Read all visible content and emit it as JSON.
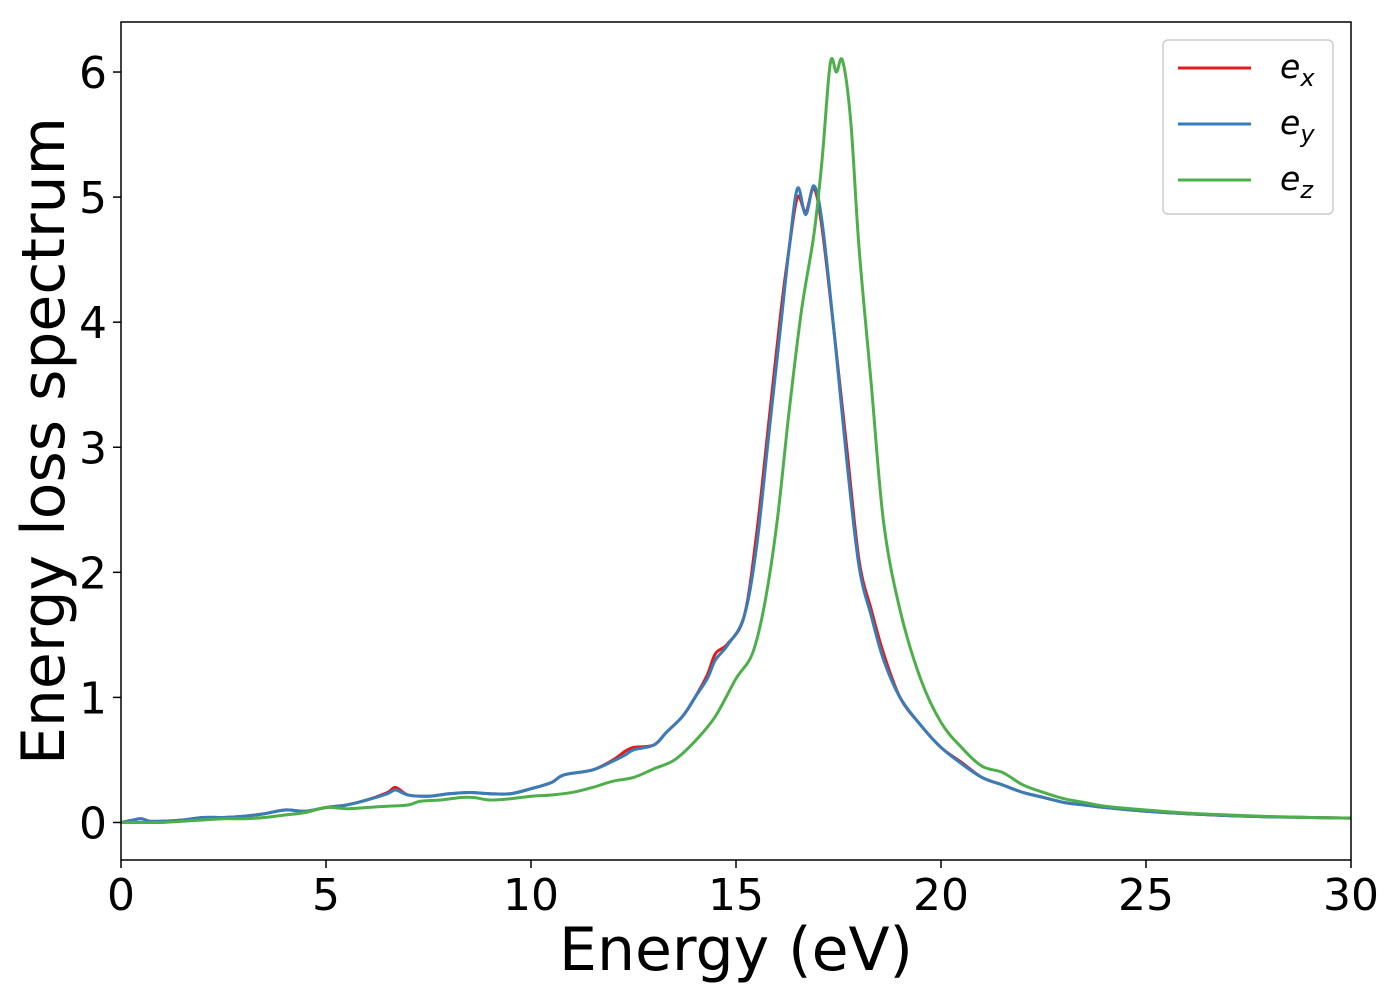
{
  "chart_data": {
    "type": "line",
    "xlabel": "Energy (eV)",
    "ylabel": "Energy loss spectrum",
    "xlim": [
      0,
      30
    ],
    "ylim": [
      -0.3,
      6.4
    ],
    "xticks": [
      0,
      5,
      10,
      15,
      20,
      25,
      30
    ],
    "yticks": [
      0,
      1,
      2,
      3,
      4,
      5,
      6
    ],
    "grid": false,
    "legend_position": "top-right",
    "series": [
      {
        "name": "e_x",
        "label_base": "e",
        "label_sub": "x",
        "color": "#e41a1c",
        "points": [
          [
            0,
            0
          ],
          [
            0.3,
            0.02
          ],
          [
            0.5,
            0.03
          ],
          [
            0.7,
            0.01
          ],
          [
            1,
            0.01
          ],
          [
            1.5,
            0.02
          ],
          [
            2,
            0.04
          ],
          [
            2.5,
            0.04
          ],
          [
            3,
            0.05
          ],
          [
            3.5,
            0.07
          ],
          [
            4,
            0.1
          ],
          [
            4.5,
            0.09
          ],
          [
            5,
            0.12
          ],
          [
            5.5,
            0.14
          ],
          [
            6,
            0.18
          ],
          [
            6.5,
            0.24
          ],
          [
            6.7,
            0.28
          ],
          [
            7,
            0.22
          ],
          [
            7.5,
            0.21
          ],
          [
            8,
            0.23
          ],
          [
            8.5,
            0.24
          ],
          [
            9,
            0.23
          ],
          [
            9.5,
            0.23
          ],
          [
            10,
            0.27
          ],
          [
            10.5,
            0.32
          ],
          [
            10.8,
            0.38
          ],
          [
            11.5,
            0.42
          ],
          [
            12,
            0.5
          ],
          [
            12.3,
            0.57
          ],
          [
            12.5,
            0.6
          ],
          [
            13,
            0.62
          ],
          [
            13.3,
            0.72
          ],
          [
            13.7,
            0.85
          ],
          [
            14,
            1.0
          ],
          [
            14.3,
            1.18
          ],
          [
            14.5,
            1.35
          ],
          [
            14.8,
            1.43
          ],
          [
            15.2,
            1.65
          ],
          [
            15.5,
            2.3
          ],
          [
            15.8,
            3.2
          ],
          [
            16.1,
            4.1
          ],
          [
            16.3,
            4.6
          ],
          [
            16.5,
            5.0
          ],
          [
            16.7,
            4.88
          ],
          [
            16.9,
            5.07
          ],
          [
            17.1,
            4.75
          ],
          [
            17.4,
            3.9
          ],
          [
            17.7,
            3.0
          ],
          [
            18.0,
            2.1
          ],
          [
            18.3,
            1.7
          ],
          [
            18.6,
            1.35
          ],
          [
            19.0,
            1.0
          ],
          [
            19.5,
            0.78
          ],
          [
            20,
            0.6
          ],
          [
            20.5,
            0.48
          ],
          [
            21,
            0.36
          ],
          [
            21.5,
            0.3
          ],
          [
            22,
            0.24
          ],
          [
            22.5,
            0.2
          ],
          [
            23,
            0.16
          ],
          [
            23.5,
            0.14
          ],
          [
            24,
            0.12
          ],
          [
            25,
            0.09
          ],
          [
            26,
            0.07
          ],
          [
            27,
            0.055
          ],
          [
            28,
            0.045
          ],
          [
            29,
            0.04
          ],
          [
            30,
            0.035
          ]
        ]
      },
      {
        "name": "e_y",
        "label_base": "e",
        "label_sub": "y",
        "color": "#377eb8",
        "points": [
          [
            0,
            0
          ],
          [
            0.3,
            0.02
          ],
          [
            0.5,
            0.03
          ],
          [
            0.7,
            0.01
          ],
          [
            1,
            0.01
          ],
          [
            1.5,
            0.02
          ],
          [
            2,
            0.04
          ],
          [
            2.5,
            0.04
          ],
          [
            3,
            0.05
          ],
          [
            3.5,
            0.07
          ],
          [
            4,
            0.1
          ],
          [
            4.5,
            0.09
          ],
          [
            5,
            0.12
          ],
          [
            5.5,
            0.14
          ],
          [
            6,
            0.18
          ],
          [
            6.5,
            0.23
          ],
          [
            6.7,
            0.26
          ],
          [
            7,
            0.22
          ],
          [
            7.5,
            0.21
          ],
          [
            8,
            0.23
          ],
          [
            8.5,
            0.24
          ],
          [
            9,
            0.23
          ],
          [
            9.5,
            0.23
          ],
          [
            10,
            0.27
          ],
          [
            10.5,
            0.32
          ],
          [
            10.8,
            0.38
          ],
          [
            11.5,
            0.42
          ],
          [
            12,
            0.49
          ],
          [
            12.3,
            0.54
          ],
          [
            12.5,
            0.58
          ],
          [
            13,
            0.62
          ],
          [
            13.3,
            0.72
          ],
          [
            13.7,
            0.85
          ],
          [
            14,
            1.0
          ],
          [
            14.3,
            1.15
          ],
          [
            14.5,
            1.3
          ],
          [
            14.8,
            1.42
          ],
          [
            15.2,
            1.65
          ],
          [
            15.5,
            2.2
          ],
          [
            15.8,
            3.1
          ],
          [
            16.1,
            4.0
          ],
          [
            16.3,
            4.6
          ],
          [
            16.5,
            5.07
          ],
          [
            16.7,
            4.86
          ],
          [
            16.9,
            5.09
          ],
          [
            17.1,
            4.8
          ],
          [
            17.4,
            3.9
          ],
          [
            17.7,
            2.9
          ],
          [
            18.0,
            2.05
          ],
          [
            18.3,
            1.65
          ],
          [
            18.6,
            1.3
          ],
          [
            19.0,
            1.0
          ],
          [
            19.5,
            0.78
          ],
          [
            20,
            0.6
          ],
          [
            20.5,
            0.47
          ],
          [
            21,
            0.36
          ],
          [
            21.5,
            0.3
          ],
          [
            22,
            0.24
          ],
          [
            22.5,
            0.2
          ],
          [
            23,
            0.16
          ],
          [
            23.5,
            0.14
          ],
          [
            24,
            0.12
          ],
          [
            25,
            0.09
          ],
          [
            26,
            0.07
          ],
          [
            27,
            0.055
          ],
          [
            28,
            0.045
          ],
          [
            29,
            0.04
          ],
          [
            30,
            0.035
          ]
        ]
      },
      {
        "name": "e_z",
        "label_base": "e",
        "label_sub": "z",
        "color": "#4daf4a",
        "points": [
          [
            0,
            0
          ],
          [
            0.5,
            0.0
          ],
          [
            1,
            0.0
          ],
          [
            1.5,
            0.01
          ],
          [
            2,
            0.02
          ],
          [
            2.5,
            0.03
          ],
          [
            3,
            0.03
          ],
          [
            3.5,
            0.04
          ],
          [
            4,
            0.06
          ],
          [
            4.5,
            0.08
          ],
          [
            5,
            0.12
          ],
          [
            5.5,
            0.11
          ],
          [
            6,
            0.12
          ],
          [
            6.5,
            0.13
          ],
          [
            7,
            0.14
          ],
          [
            7.3,
            0.17
          ],
          [
            7.8,
            0.18
          ],
          [
            8.3,
            0.2
          ],
          [
            8.6,
            0.2
          ],
          [
            9,
            0.18
          ],
          [
            9.5,
            0.19
          ],
          [
            10,
            0.21
          ],
          [
            10.5,
            0.22
          ],
          [
            11,
            0.24
          ],
          [
            11.5,
            0.28
          ],
          [
            12,
            0.33
          ],
          [
            12.5,
            0.36
          ],
          [
            13,
            0.43
          ],
          [
            13.5,
            0.5
          ],
          [
            14,
            0.65
          ],
          [
            14.5,
            0.85
          ],
          [
            15,
            1.15
          ],
          [
            15.4,
            1.35
          ],
          [
            15.7,
            1.75
          ],
          [
            16,
            2.4
          ],
          [
            16.3,
            3.3
          ],
          [
            16.6,
            4.1
          ],
          [
            16.9,
            4.7
          ],
          [
            17.1,
            5.3
          ],
          [
            17.3,
            6.07
          ],
          [
            17.45,
            6.0
          ],
          [
            17.6,
            6.09
          ],
          [
            17.8,
            5.6
          ],
          [
            18.0,
            4.6
          ],
          [
            18.3,
            3.5
          ],
          [
            18.6,
            2.4
          ],
          [
            19.0,
            1.7
          ],
          [
            19.5,
            1.15
          ],
          [
            20,
            0.8
          ],
          [
            20.5,
            0.6
          ],
          [
            21,
            0.45
          ],
          [
            21.5,
            0.4
          ],
          [
            22,
            0.3
          ],
          [
            22.5,
            0.24
          ],
          [
            23,
            0.19
          ],
          [
            23.5,
            0.16
          ],
          [
            24,
            0.13
          ],
          [
            25,
            0.1
          ],
          [
            26,
            0.075
          ],
          [
            27,
            0.06
          ],
          [
            28,
            0.048
          ],
          [
            29,
            0.04
          ],
          [
            30,
            0.035
          ]
        ]
      }
    ]
  }
}
